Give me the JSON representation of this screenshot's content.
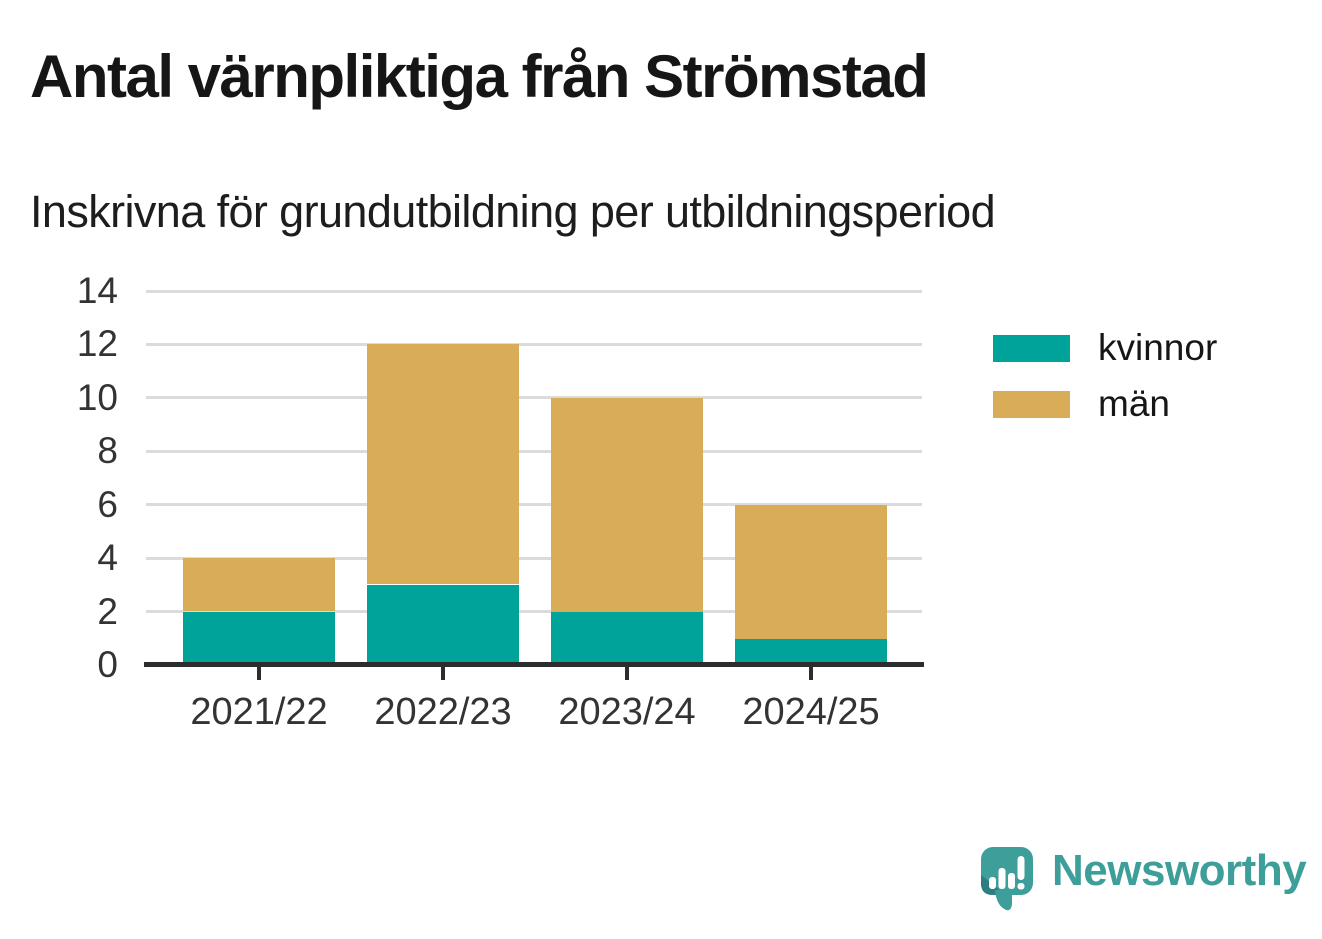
{
  "chart_data": {
    "type": "bar",
    "stacked": true,
    "title": "Antal värnpliktiga från Strömstad",
    "subtitle": "Inskrivna för grundutbildning per utbildningsperiod",
    "categories": [
      "2021/22",
      "2022/23",
      "2023/24",
      "2024/25"
    ],
    "series": [
      {
        "name": "kvinnor",
        "color": "#00A39A",
        "values": [
          2,
          3,
          2,
          1
        ]
      },
      {
        "name": "män",
        "color": "#D9AC58",
        "values": [
          2,
          9,
          8,
          5
        ]
      }
    ],
    "totals": [
      4,
      12,
      10,
      6
    ],
    "xlabel": "",
    "ylabel": "",
    "ylim": [
      0,
      14
    ],
    "yticks": [
      0,
      2,
      4,
      6,
      8,
      10,
      12,
      14
    ],
    "grid": true,
    "legend_position": "right"
  },
  "colors": {
    "axis": "#2D2D2D",
    "grid": "#DBDBDB",
    "tick_text": "#333333",
    "title_text": "#161616"
  },
  "footer": {
    "brand": "Newsworthy",
    "brand_color": "#3E9E99",
    "icon_color": "#4AA49E",
    "icon_shade_color": "#2E7E81",
    "icon": "newsworthy-speech-bubble-bar-chart-icon"
  }
}
